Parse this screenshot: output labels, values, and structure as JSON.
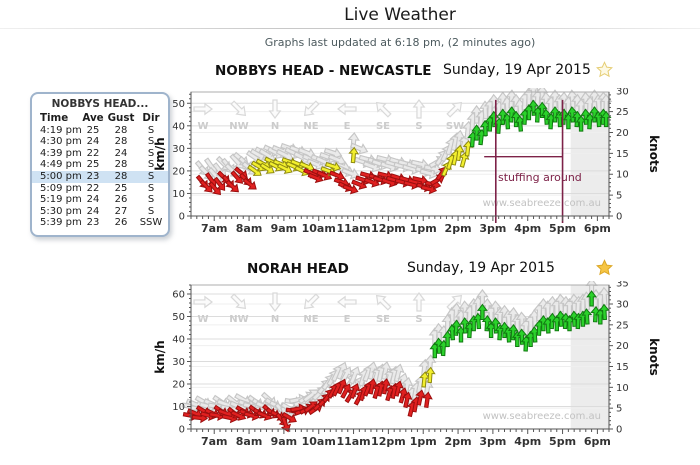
{
  "page": {
    "title": "Live Weather",
    "updated": "Graphs last updated at 6:18 pm, (2 minutes ago)"
  },
  "readings": {
    "title": "NOBBYS HEAD...",
    "columns": [
      "Time",
      "Ave",
      "Gust",
      "Dir"
    ],
    "rows": [
      [
        "4:19 pm",
        "25",
        "28",
        "S"
      ],
      [
        "4:30 pm",
        "24",
        "28",
        "S"
      ],
      [
        "4:39 pm",
        "22",
        "24",
        "S"
      ],
      [
        "4:49 pm",
        "25",
        "28",
        "S"
      ],
      [
        "5:00 pm",
        "23",
        "28",
        "S"
      ],
      [
        "5:09 pm",
        "22",
        "25",
        "S"
      ],
      [
        "5:19 pm",
        "24",
        "26",
        "S"
      ],
      [
        "5:30 pm",
        "24",
        "27",
        "S"
      ],
      [
        "5:39 pm",
        "23",
        "26",
        "SSW"
      ]
    ],
    "highlighted_row": 4
  },
  "style": {
    "arrow_red": "#e02020",
    "arrow_red_edge": "#9b0f0f",
    "arrow_yellow": "#f2ef2e",
    "arrow_yellow_edge": "#8f8a12",
    "arrow_green": "#2bd22b",
    "arrow_green_edge": "#117a11",
    "arrow_gust": "#e9e9e9",
    "arrow_gust_edge": "#c6c6c6",
    "threshold_yellow_kmh": 19.5,
    "threshold_green_kmh": 33,
    "annotation_color": "#7d2248",
    "band_color": "#ececec",
    "grid_kmh": "#dcdcdc",
    "grid_knots": "#efefef"
  },
  "chart_data": [
    {
      "type": "wind-arrow-time-series",
      "station": "NOBBYS HEAD - NEWCASTLE",
      "date": "Sunday, 19 Apr 2015",
      "star": "outline",
      "watermark": "www.seabreeze.com.au",
      "axes": {
        "left_label": "km/h",
        "left_ticks": [
          0,
          10,
          20,
          30,
          40,
          50
        ],
        "max_kmh": 55,
        "right_label": "knots",
        "right_ticks": [
          0,
          5,
          10,
          15,
          20,
          25,
          30
        ],
        "x_tick_labels": [
          "7am",
          "8am",
          "9am",
          "10am",
          "11am",
          "12pm",
          "1pm",
          "2pm",
          "3pm",
          "4pm",
          "5pm",
          "6pm"
        ],
        "t0": 20,
        "t1": 740,
        "first_tick_t": 60,
        "tick_step": 60
      },
      "legend_dirs": [
        "W",
        "NW",
        "N",
        "NE",
        "E",
        "SE",
        "S",
        "SW"
      ],
      "recent_band": {
        "from_t": 674,
        "to_t": 740
      },
      "annotation": {
        "text": "stuffing around",
        "line1_t": 545,
        "line2_t": 660,
        "top_kmh": 51.5,
        "hline_from_t": 525,
        "hline_kmh": 26.3,
        "text_t": 621,
        "text_kmh": 15.5
      },
      "points": [
        [
          40,
          15,
          21,
          140
        ],
        [
          47,
          13,
          19,
          135
        ],
        [
          55,
          16,
          22,
          145
        ],
        [
          62,
          12,
          18,
          138
        ],
        [
          70,
          14,
          20,
          142
        ],
        [
          77,
          17,
          23,
          135
        ],
        [
          85,
          15,
          22,
          140
        ],
        [
          92,
          13,
          20,
          132
        ],
        [
          100,
          17,
          24,
          138
        ],
        [
          107,
          19,
          25,
          130
        ],
        [
          115,
          16,
          23,
          135
        ],
        [
          122,
          14,
          21,
          128
        ],
        [
          130,
          20,
          26,
          125
        ],
        [
          137,
          22,
          27,
          120
        ],
        [
          145,
          23,
          28,
          118
        ],
        [
          152,
          21,
          27,
          122
        ],
        [
          160,
          24,
          29,
          115
        ],
        [
          167,
          22,
          28,
          118
        ],
        [
          175,
          23,
          29,
          112
        ],
        [
          182,
          21,
          27,
          116
        ],
        [
          190,
          24,
          30,
          110
        ],
        [
          197,
          22,
          28,
          114
        ],
        [
          205,
          23,
          29,
          112
        ],
        [
          212,
          20,
          26,
          116
        ],
        [
          220,
          22,
          28,
          112
        ],
        [
          227,
          19,
          25,
          115
        ],
        [
          235,
          17,
          23,
          112
        ],
        [
          242,
          19,
          25,
          110
        ],
        [
          250,
          18,
          24,
          114
        ],
        [
          257,
          20,
          26,
          110
        ],
        [
          265,
          22,
          28,
          108
        ],
        [
          272,
          18,
          25,
          112
        ],
        [
          280,
          15,
          22,
          110
        ],
        [
          287,
          13,
          20,
          114
        ],
        [
          295,
          12,
          19,
          110
        ],
        [
          300,
          27,
          33,
          5
        ],
        [
          310,
          14,
          30,
          112
        ],
        [
          317,
          16,
          24,
          108
        ],
        [
          325,
          18,
          25,
          105
        ],
        [
          332,
          15,
          22,
          110
        ],
        [
          340,
          17,
          24,
          106
        ],
        [
          347,
          16,
          23,
          108
        ],
        [
          355,
          18,
          25,
          104
        ],
        [
          362,
          15,
          22,
          108
        ],
        [
          370,
          16,
          23,
          105
        ],
        [
          377,
          17,
          24,
          107
        ],
        [
          385,
          15,
          22,
          104
        ],
        [
          392,
          16,
          23,
          106
        ],
        [
          400,
          14,
          21,
          104
        ],
        [
          407,
          15,
          22,
          106
        ],
        [
          415,
          16,
          23,
          103
        ],
        [
          422,
          13,
          20,
          106
        ],
        [
          430,
          12,
          19,
          104
        ],
        [
          437,
          14,
          21,
          102
        ],
        [
          445,
          16,
          24,
          60
        ],
        [
          452,
          19,
          26,
          35
        ],
        [
          460,
          21,
          28,
          25
        ],
        [
          467,
          24,
          31,
          18
        ],
        [
          475,
          26,
          33,
          12
        ],
        [
          482,
          28,
          34,
          8
        ],
        [
          490,
          25,
          32,
          15
        ],
        [
          497,
          30,
          38,
          6
        ],
        [
          505,
          34,
          42,
          4
        ],
        [
          512,
          37,
          45,
          0
        ],
        [
          520,
          35,
          43,
          6
        ],
        [
          527,
          39,
          47,
          358
        ],
        [
          535,
          41,
          48,
          2
        ],
        [
          542,
          43,
          50,
          357
        ],
        [
          550,
          40,
          47,
          4
        ],
        [
          557,
          44,
          51,
          0
        ],
        [
          565,
          42,
          49,
          356
        ],
        [
          572,
          45,
          52,
          3
        ],
        [
          580,
          43,
          50,
          0
        ],
        [
          587,
          41,
          48,
          355
        ],
        [
          595,
          44,
          51,
          3
        ],
        [
          602,
          46,
          53,
          0
        ],
        [
          610,
          48,
          55,
          357
        ],
        [
          617,
          45,
          52,
          3
        ],
        [
          625,
          47,
          54,
          0
        ],
        [
          632,
          44,
          51,
          356
        ],
        [
          640,
          42,
          49,
          3
        ],
        [
          647,
          45,
          52,
          0
        ],
        [
          655,
          43,
          50,
          357
        ],
        [
          662,
          44,
          51,
          3
        ],
        [
          670,
          42,
          49,
          0
        ],
        [
          677,
          45,
          52,
          356
        ],
        [
          685,
          43,
          50,
          3
        ],
        [
          692,
          41,
          48,
          0
        ],
        [
          700,
          44,
          51,
          357
        ],
        [
          707,
          42,
          49,
          3
        ],
        [
          715,
          45,
          52,
          0
        ],
        [
          722,
          43,
          50,
          356
        ],
        [
          730,
          44,
          51,
          2
        ],
        [
          735,
          43,
          50,
          0
        ]
      ]
    },
    {
      "type": "wind-arrow-time-series",
      "station": "NORAH HEAD",
      "date": "Sunday, 19 Apr 2015",
      "star": "filled",
      "watermark": "www.seabreeze.com.au",
      "axes": {
        "left_label": "km/h",
        "left_ticks": [
          0,
          10,
          20,
          30,
          40,
          50,
          60
        ],
        "max_kmh": 64,
        "right_label": "knots",
        "right_ticks": [
          0,
          5,
          10,
          15,
          20,
          25,
          30,
          35
        ],
        "x_tick_labels": [
          "7am",
          "8am",
          "9am",
          "10am",
          "11am",
          "12pm",
          "1pm",
          "2pm",
          "3pm",
          "4pm",
          "5pm",
          "6pm"
        ],
        "t0": 20,
        "t1": 740,
        "first_tick_t": 60,
        "tick_step": 60
      },
      "legend_dirs": [
        "W",
        "NW",
        "N",
        "NE",
        "E",
        "SE",
        "S",
        "SW"
      ],
      "recent_band": {
        "from_t": 674,
        "to_t": 740
      },
      "annotation": null,
      "points": [
        [
          20,
          6,
          10,
          100
        ],
        [
          27,
          7,
          11,
          112
        ],
        [
          35,
          5,
          9,
          96
        ],
        [
          42,
          8,
          12,
          120
        ],
        [
          50,
          6,
          10,
          105
        ],
        [
          57,
          7,
          11,
          115
        ],
        [
          65,
          6,
          10,
          100
        ],
        [
          72,
          8,
          12,
          124
        ],
        [
          80,
          7,
          11,
          110
        ],
        [
          87,
          5,
          9,
          102
        ],
        [
          95,
          7,
          12,
          128
        ],
        [
          102,
          6,
          10,
          114
        ],
        [
          110,
          8,
          13,
          120
        ],
        [
          117,
          7,
          11,
          108
        ],
        [
          125,
          6,
          10,
          104
        ],
        [
          132,
          8,
          12,
          126
        ],
        [
          140,
          7,
          11,
          118
        ],
        [
          147,
          6,
          10,
          112
        ],
        [
          155,
          8,
          13,
          132
        ],
        [
          162,
          7,
          11,
          122
        ],
        [
          170,
          6,
          10,
          118
        ],
        [
          177,
          4,
          8,
          140
        ],
        [
          183,
          2,
          6,
          160
        ],
        [
          190,
          5,
          9,
          120
        ],
        [
          197,
          8,
          12,
          100
        ],
        [
          205,
          9,
          13,
          80
        ],
        [
          212,
          8,
          12,
          70
        ],
        [
          220,
          9,
          14,
          60
        ],
        [
          227,
          10,
          15,
          52
        ],
        [
          235,
          9,
          13,
          56
        ],
        [
          242,
          11,
          16,
          46
        ],
        [
          250,
          13,
          19,
          40
        ],
        [
          257,
          15,
          21,
          36
        ],
        [
          265,
          17,
          23,
          30
        ],
        [
          272,
          18,
          25,
          26
        ],
        [
          280,
          19,
          26,
          22
        ],
        [
          287,
          17,
          24,
          28
        ],
        [
          295,
          15,
          21,
          32
        ],
        [
          302,
          17,
          24,
          22
        ],
        [
          310,
          14,
          20,
          28
        ],
        [
          317,
          16,
          23,
          18
        ],
        [
          325,
          18,
          25,
          22
        ],
        [
          332,
          19,
          26,
          12
        ],
        [
          340,
          17,
          24,
          16
        ],
        [
          347,
          18,
          25,
          12
        ],
        [
          355,
          19,
          26,
          10
        ],
        [
          362,
          16,
          23,
          16
        ],
        [
          370,
          17,
          24,
          12
        ],
        [
          377,
          18,
          25,
          14
        ],
        [
          385,
          15,
          21,
          16
        ],
        [
          392,
          13,
          19,
          12
        ],
        [
          400,
          9,
          15,
          14
        ],
        [
          407,
          11,
          17,
          10
        ],
        [
          415,
          14,
          20,
          12
        ],
        [
          422,
          22,
          27,
          6
        ],
        [
          427,
          13,
          18,
          8
        ],
        [
          432,
          24,
          29,
          4
        ],
        [
          440,
          35,
          41,
          0
        ],
        [
          447,
          37,
          43,
          357
        ],
        [
          455,
          36,
          42,
          3
        ],
        [
          462,
          40,
          47,
          0
        ],
        [
          470,
          43,
          50,
          356
        ],
        [
          477,
          45,
          52,
          3
        ],
        [
          485,
          42,
          49,
          0
        ],
        [
          492,
          46,
          53,
          357
        ],
        [
          500,
          44,
          51,
          3
        ],
        [
          507,
          47,
          54,
          0
        ],
        [
          515,
          48,
          55,
          356
        ],
        [
          522,
          52,
          58,
          0
        ],
        [
          530,
          47,
          54,
          3
        ],
        [
          537,
          44,
          51,
          0
        ],
        [
          545,
          46,
          53,
          357
        ],
        [
          552,
          43,
          50,
          3
        ],
        [
          560,
          44,
          51,
          0
        ],
        [
          567,
          42,
          49,
          356
        ],
        [
          575,
          43,
          50,
          3
        ],
        [
          582,
          40,
          47,
          0
        ],
        [
          590,
          41,
          48,
          357
        ],
        [
          597,
          38,
          45,
          3
        ],
        [
          605,
          40,
          47,
          0
        ],
        [
          612,
          42,
          49,
          356
        ],
        [
          620,
          45,
          52,
          3
        ],
        [
          627,
          47,
          54,
          0
        ],
        [
          635,
          46,
          53,
          357
        ],
        [
          642,
          48,
          55,
          3
        ],
        [
          650,
          47,
          54,
          0
        ],
        [
          657,
          49,
          56,
          356
        ],
        [
          665,
          48,
          55,
          3
        ],
        [
          672,
          47,
          54,
          0
        ],
        [
          680,
          49,
          56,
          357
        ],
        [
          687,
          48,
          55,
          3
        ],
        [
          695,
          49,
          56,
          0
        ],
        [
          702,
          50,
          57,
          356
        ],
        [
          710,
          58,
          63,
          0
        ],
        [
          717,
          51,
          58,
          3
        ],
        [
          725,
          50,
          57,
          0
        ],
        [
          732,
          52,
          59,
          357
        ]
      ]
    }
  ]
}
